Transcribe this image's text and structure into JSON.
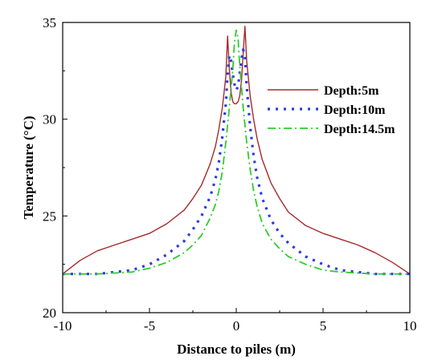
{
  "chart_data": {
    "type": "line",
    "xlabel": "Distance to piles (m)",
    "ylabel": "Temperature (°C)",
    "xlim": [
      -10,
      10
    ],
    "ylim": [
      20,
      35
    ],
    "xticks": [
      -10,
      -5,
      0,
      5,
      10
    ],
    "yticks": [
      20,
      25,
      30,
      35
    ],
    "legend_position": "right",
    "series": [
      {
        "name": "Depth:5m",
        "color": "#a52a2a",
        "style": "solid",
        "x": [
          -10,
          -9,
          -8,
          -7,
          -6,
          -5,
          -4,
          -3,
          -2.5,
          -2,
          -1.5,
          -1.2,
          -1.0,
          -0.8,
          -0.6,
          -0.5,
          -0.4,
          -0.3,
          -0.2,
          -0.1,
          0,
          0.1,
          0.2,
          0.3,
          0.4,
          0.5,
          0.6,
          0.8,
          1.0,
          1.2,
          1.5,
          2,
          2.5,
          3,
          4,
          5,
          6,
          7,
          8,
          9,
          10
        ],
        "y": [
          22.0,
          22.7,
          23.2,
          23.5,
          23.8,
          24.1,
          24.6,
          25.3,
          25.9,
          26.6,
          27.7,
          28.6,
          29.5,
          30.6,
          32.2,
          34.3,
          32.6,
          31.4,
          30.9,
          30.8,
          30.8,
          30.9,
          31.2,
          32.0,
          33.4,
          34.8,
          33.0,
          31.2,
          30.0,
          29.0,
          27.9,
          26.7,
          25.9,
          25.2,
          24.5,
          24.1,
          23.8,
          23.5,
          23.1,
          22.6,
          22.0
        ]
      },
      {
        "name": "Depth:10m",
        "color": "#2b3cdc",
        "style": "dotted",
        "x": [
          -10,
          -8,
          -6,
          -5,
          -4,
          -3,
          -2.5,
          -2,
          -1.5,
          -1.2,
          -1.0,
          -0.8,
          -0.6,
          -0.5,
          -0.4,
          -0.3,
          -0.2,
          -0.1,
          0,
          0.1,
          0.2,
          0.3,
          0.4,
          0.5,
          0.6,
          0.8,
          1.0,
          1.2,
          1.5,
          2,
          2.5,
          3,
          4,
          5,
          6,
          8,
          10
        ],
        "y": [
          22.0,
          22.0,
          22.2,
          22.5,
          23.0,
          23.7,
          24.3,
          25.0,
          26.0,
          26.9,
          27.8,
          29.1,
          30.8,
          32.3,
          33.3,
          33.0,
          32.3,
          31.8,
          31.5,
          31.7,
          32.4,
          33.1,
          33.6,
          33.2,
          31.7,
          29.6,
          28.1,
          27.0,
          25.9,
          24.8,
          24.1,
          23.6,
          22.9,
          22.5,
          22.2,
          22.0,
          22.0
        ]
      },
      {
        "name": "Depth:14.5m",
        "color": "#2ecc2e",
        "style": "dashdot",
        "x": [
          -10,
          -8,
          -6,
          -5,
          -4,
          -3,
          -2.5,
          -2,
          -1.5,
          -1.2,
          -1.0,
          -0.8,
          -0.6,
          -0.4,
          -0.2,
          -0.1,
          0,
          0.1,
          0.2,
          0.4,
          0.6,
          0.8,
          1.0,
          1.2,
          1.5,
          2,
          2.5,
          3,
          4,
          5,
          6,
          8,
          10
        ],
        "y": [
          22.0,
          22.0,
          22.1,
          22.3,
          22.6,
          23.1,
          23.5,
          24.0,
          24.9,
          25.6,
          26.3,
          27.3,
          28.8,
          30.6,
          32.6,
          34.0,
          34.6,
          34.2,
          32.8,
          30.6,
          28.8,
          27.4,
          26.3,
          25.5,
          24.6,
          23.8,
          23.3,
          22.9,
          22.5,
          22.2,
          22.1,
          22.0,
          22.0
        ]
      }
    ]
  }
}
